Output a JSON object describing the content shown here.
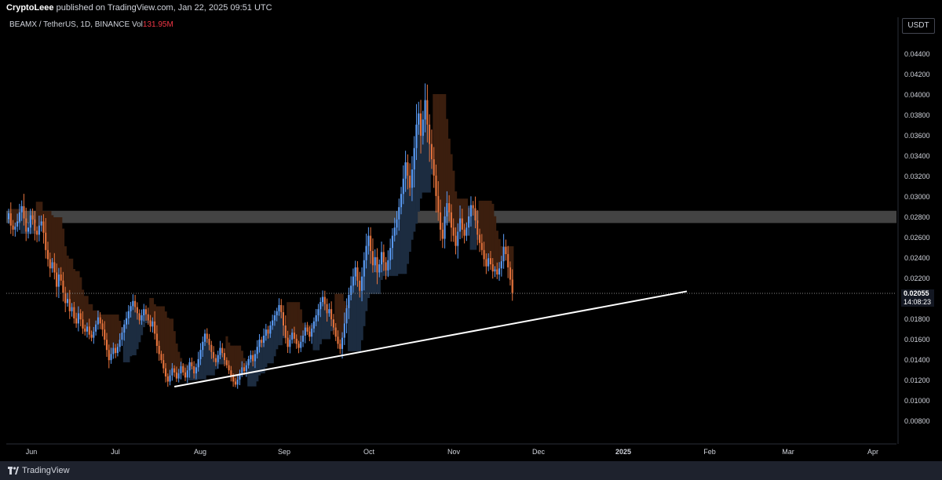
{
  "header": {
    "author": "CryptoLeee",
    "published_text": "published on TradingView.com, Jan 22, 2025 09:51 UTC"
  },
  "legend": {
    "symbol": "BEAMX / TetherUS, 1D, BINANCE",
    "vol_label": "Vol",
    "vol_value": "131.95M"
  },
  "currency": "USDT",
  "last_price": {
    "value": "0.02055",
    "countdown": "14:08:23"
  },
  "footer": {
    "brand": "TradingView"
  },
  "colors": {
    "background": "#000000",
    "bull": "#5b9cf6",
    "bear": "#e7743d",
    "cloud_bull": "#1c2c40",
    "cloud_bear": "#3b1e0e",
    "resistance_zone": "#5a5a5a",
    "trendline": "#ffffff"
  },
  "chart_data": {
    "type": "candlestick",
    "symbol": "BEAMX / TetherUS",
    "interval": "1D",
    "exchange": "BINANCE",
    "xlabels": [
      "Jun",
      "Jul",
      "Aug",
      "Sep",
      "Oct",
      "Nov",
      "Dec",
      "2025",
      "Feb",
      "Mar",
      "Apr"
    ],
    "ylabels": [
      "0.04400",
      "0.04200",
      "0.04000",
      "0.03800",
      "0.03600",
      "0.03400",
      "0.03200",
      "0.03000",
      "0.02800",
      "0.02600",
      "0.02400",
      "0.02200",
      "0.01800",
      "0.01600",
      "0.01400",
      "0.01200",
      "0.01000",
      "0.00800"
    ],
    "ylim": [
      0.0066,
      0.0463
    ],
    "series": [
      {
        "close": [
          0.0284,
          0.0272,
          0.0268,
          0.0271,
          0.0276,
          0.0285,
          0.0291,
          0.0279,
          0.0266,
          0.027,
          0.0282,
          0.0278,
          0.0267,
          0.0263,
          0.0272,
          0.0276,
          0.0265,
          0.0248,
          0.0239,
          0.023,
          0.0236,
          0.0226,
          0.0212,
          0.0224,
          0.0218,
          0.0206,
          0.0196,
          0.02,
          0.0188,
          0.0192,
          0.0181,
          0.0176,
          0.0186,
          0.018,
          0.0171,
          0.0168,
          0.0173,
          0.0165,
          0.0162,
          0.0168,
          0.0175,
          0.0182,
          0.0176,
          0.017,
          0.016,
          0.015,
          0.014,
          0.0146,
          0.0152,
          0.0147,
          0.0153,
          0.016,
          0.0167,
          0.0175,
          0.0181,
          0.0188,
          0.0193,
          0.0198,
          0.0192,
          0.0186,
          0.0179,
          0.0184,
          0.019,
          0.0185,
          0.0179,
          0.0173,
          0.0178,
          0.0166,
          0.0154,
          0.0146,
          0.014,
          0.0132,
          0.0124,
          0.0119,
          0.0125,
          0.0132,
          0.0128,
          0.0122,
          0.0127,
          0.0134,
          0.0128,
          0.0123,
          0.013,
          0.0138,
          0.0134,
          0.0127,
          0.0133,
          0.0141,
          0.015,
          0.0158,
          0.0166,
          0.0161,
          0.0155,
          0.0148,
          0.0142,
          0.0138,
          0.0145,
          0.0152,
          0.0147,
          0.014,
          0.0135,
          0.013,
          0.0124,
          0.0119,
          0.0116,
          0.0121,
          0.0127,
          0.0133,
          0.0129,
          0.0135,
          0.0141,
          0.0145,
          0.0139,
          0.0146,
          0.0153,
          0.016,
          0.0157,
          0.0164,
          0.017,
          0.0166,
          0.0174,
          0.0179,
          0.0184,
          0.0188,
          0.0194,
          0.0187,
          0.0174,
          0.0162,
          0.0153,
          0.016,
          0.0167,
          0.0161,
          0.0156,
          0.0152,
          0.0158,
          0.0164,
          0.0172,
          0.0168,
          0.0163,
          0.0171,
          0.0178,
          0.0184,
          0.019,
          0.0197,
          0.0202,
          0.0195,
          0.0186,
          0.019,
          0.018,
          0.0172,
          0.0163,
          0.0156,
          0.0151,
          0.0162,
          0.0176,
          0.0191,
          0.0204,
          0.0213,
          0.0222,
          0.0231,
          0.0218,
          0.0208,
          0.0222,
          0.0238,
          0.0252,
          0.0262,
          0.0247,
          0.0233,
          0.0241,
          0.0226,
          0.0234,
          0.0246,
          0.0236,
          0.0228,
          0.0238,
          0.025,
          0.0262,
          0.027,
          0.0278,
          0.029,
          0.0303,
          0.0318,
          0.0334,
          0.0321,
          0.0309,
          0.0327,
          0.0348,
          0.0371,
          0.0382,
          0.036,
          0.0376,
          0.0395,
          0.0371,
          0.0352,
          0.0337,
          0.0321,
          0.0301,
          0.0285,
          0.0268,
          0.0259,
          0.0281,
          0.0294,
          0.0285,
          0.027,
          0.0262,
          0.0252,
          0.0266,
          0.0279,
          0.0268,
          0.0262,
          0.027,
          0.0281,
          0.0292,
          0.0289,
          0.0277,
          0.0263,
          0.0255,
          0.0248,
          0.0239,
          0.0232,
          0.024,
          0.0234,
          0.0227,
          0.0229,
          0.0224,
          0.023,
          0.0237,
          0.0251,
          0.0244,
          0.0231,
          0.0219,
          0.0206
        ]
      }
    ],
    "annotations": [
      {
        "type": "resistance_zone",
        "price_low": 0.02745,
        "price_high": 0.02865
      },
      {
        "type": "trendline",
        "from": {
          "bar": 76,
          "price": 0.0114
        },
        "to": {
          "bar": 311,
          "price": 0.02075
        }
      },
      {
        "type": "last_price_line",
        "price": 0.02055
      }
    ],
    "grid": false,
    "legend_position": "top-left"
  }
}
